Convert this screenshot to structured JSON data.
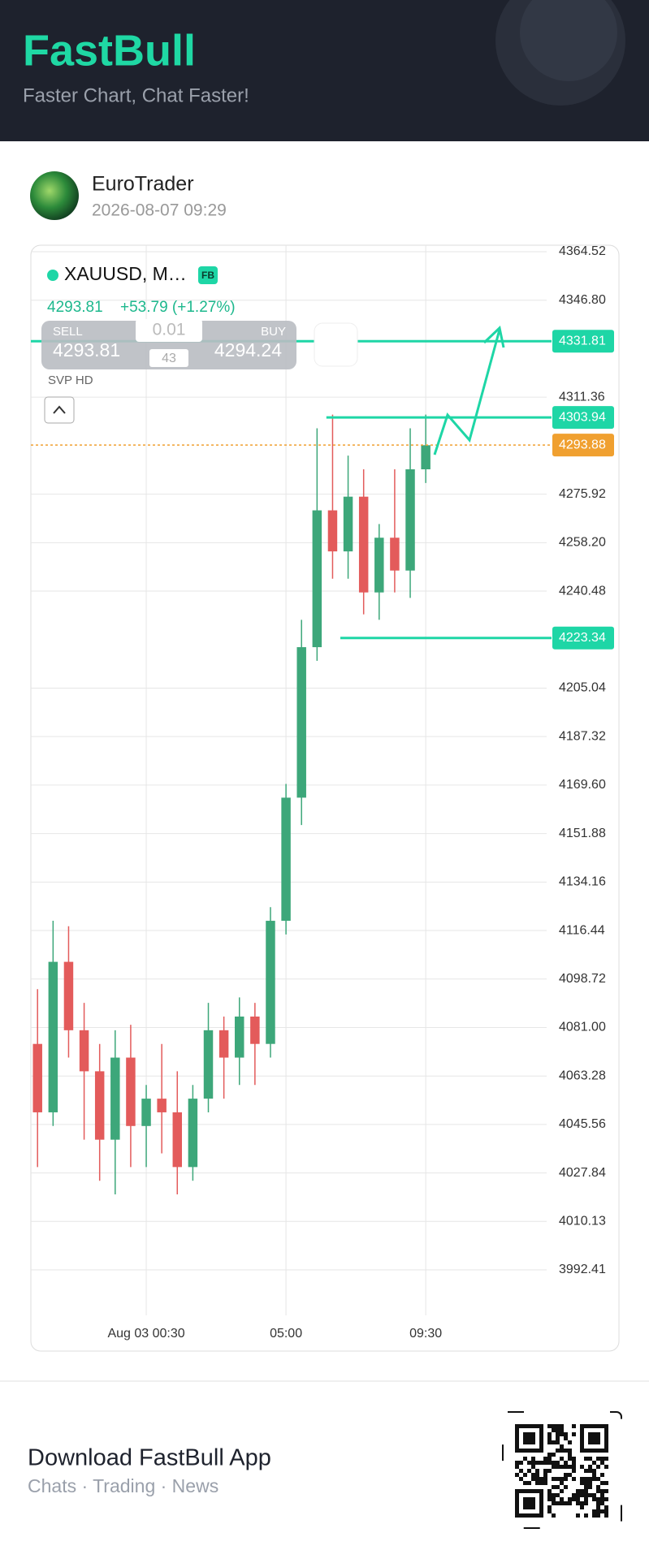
{
  "header": {
    "title": "FastBull",
    "subtitle": "Faster Chart, Chat Faster!"
  },
  "post": {
    "author": "EuroTrader",
    "timestamp": "2026-08-07 09:29"
  },
  "chart_data": {
    "type": "candlestick",
    "symbol": "XAUUSD, M…",
    "badge": "FB",
    "last_price": 4293.81,
    "change": "+53.79 (+1.27%)",
    "trade_panel": {
      "sell_label": "SELL",
      "sell_price": 4293.81,
      "buy_label": "BUY",
      "buy_price": 4294.24,
      "lot": 0.01,
      "spread": 43
    },
    "indicator": "SVP HD",
    "up_color": "#3da77a",
    "down_color": "#e35b5b",
    "x": [
      1,
      2,
      3,
      4,
      5,
      6,
      7,
      8,
      9,
      10,
      11,
      12,
      13,
      14,
      15,
      16,
      17,
      18,
      19,
      20,
      21,
      22,
      23,
      24,
      25,
      26
    ],
    "candles": [
      [
        4075,
        4095,
        4030,
        4050
      ],
      [
        4050,
        4120,
        4045,
        4105
      ],
      [
        4105,
        4118,
        4070,
        4080
      ],
      [
        4080,
        4090,
        4040,
        4065
      ],
      [
        4065,
        4075,
        4025,
        4040
      ],
      [
        4040,
        4080,
        4020,
        4070
      ],
      [
        4070,
        4082,
        4030,
        4045
      ],
      [
        4045,
        4060,
        4030,
        4055
      ],
      [
        4055,
        4075,
        4035,
        4050
      ],
      [
        4050,
        4065,
        4020,
        4030
      ],
      [
        4030,
        4060,
        4025,
        4055
      ],
      [
        4055,
        4090,
        4050,
        4080
      ],
      [
        4080,
        4085,
        4055,
        4070
      ],
      [
        4070,
        4092,
        4060,
        4085
      ],
      [
        4085,
        4090,
        4060,
        4075
      ],
      [
        4075,
        4125,
        4070,
        4120
      ],
      [
        4120,
        4170,
        4115,
        4165
      ],
      [
        4165,
        4230,
        4155,
        4220
      ],
      [
        4220,
        4300,
        4215,
        4270
      ],
      [
        4270,
        4305,
        4245,
        4255
      ],
      [
        4255,
        4290,
        4245,
        4275
      ],
      [
        4275,
        4285,
        4232,
        4240
      ],
      [
        4240,
        4265,
        4230,
        4260
      ],
      [
        4260,
        4285,
        4240,
        4248
      ],
      [
        4248,
        4300,
        4238,
        4285
      ],
      [
        4285,
        4305,
        4280,
        4293.81
      ]
    ],
    "xlim": [
      0.57,
      34.1
    ],
    "xticks": [
      {
        "value": 8,
        "label": "Aug 03 00:30"
      },
      {
        "value": 17,
        "label": "05:00"
      },
      {
        "value": 26,
        "label": "09:30"
      }
    ],
    "ylim": [
      3975.8,
      4366.9
    ],
    "yticks": [
      4364.52,
      {
        "value": 4346.8,
        "label": "4346.80"
      },
      4311.36,
      4275.92,
      {
        "value": 4258.2,
        "label": "4258.20"
      },
      4240.48,
      4205.04,
      4187.32,
      {
        "value": 4169.6,
        "label": "4169.60"
      },
      4151.88,
      4134.16,
      4116.44,
      4098.72,
      {
        "value": 4081,
        "label": "4081.00"
      },
      4063.28,
      4045.56,
      4027.84,
      4010.13,
      3992.41
    ],
    "grid": true,
    "levels": [
      {
        "value": 4331.81,
        "color": "#1ed6a6",
        "x_from": 0.57,
        "dashed": false
      },
      {
        "value": 4303.94,
        "color": "#1ed6a6",
        "x_from": 19.6,
        "dashed": false
      },
      {
        "value": 4293.88,
        "color": "#f0a030",
        "x_from": 0.57,
        "dashed": true
      },
      {
        "value": 4223.34,
        "color": "#1ed6a6",
        "x_from": 20.5,
        "dashed": false
      }
    ]
  },
  "footer": {
    "title": "Download FastBull App",
    "subtitle": "Chats · Trading · News"
  }
}
